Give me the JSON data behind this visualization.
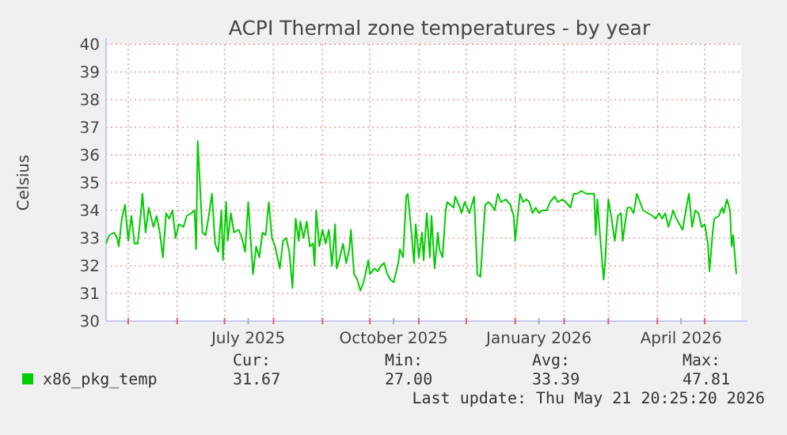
{
  "chart_data": {
    "type": "line",
    "title": "ACPI Thermal zone temperatures - by year",
    "ylabel": "Celsius",
    "xlim": [
      "2025-04-17",
      "2026-05-24"
    ],
    "xticks": [
      {
        "value": "2025-05-01",
        "label": null
      },
      {
        "value": "2025-06-01",
        "label": null
      },
      {
        "value": "2025-07-01",
        "label": null
      },
      {
        "value": "2025-07-16",
        "label": "July 2025"
      },
      {
        "value": "2025-08-01",
        "label": null
      },
      {
        "value": "2025-09-01",
        "label": null
      },
      {
        "value": "2025-10-01",
        "label": null
      },
      {
        "value": "2025-10-16",
        "label": "October 2025"
      },
      {
        "value": "2025-11-01",
        "label": null
      },
      {
        "value": "2025-12-01",
        "label": null
      },
      {
        "value": "2026-01-01",
        "label": null
      },
      {
        "value": "2026-01-16",
        "label": "January 2026"
      },
      {
        "value": "2026-02-01",
        "label": null
      },
      {
        "value": "2026-03-01",
        "label": null
      },
      {
        "value": "2026-04-01",
        "label": null
      },
      {
        "value": "2026-04-16",
        "label": "April 2026"
      },
      {
        "value": "2026-05-01",
        "label": null
      }
    ],
    "ylim": [
      30,
      40
    ],
    "yticks": [
      30,
      31,
      32,
      33,
      34,
      35,
      36,
      37,
      38,
      39,
      40
    ],
    "grid": true,
    "legend": "bottom left",
    "annotations": [
      "Cur:",
      "Min:",
      "Avg:",
      "Max:",
      "31.67",
      "27.00",
      "33.39",
      "47.81",
      "Last update: Thu May 21 20:25:20 2026"
    ],
    "x": [
      "2025-04-17",
      "2025-04-19",
      "2025-04-22",
      "2025-04-24",
      "2025-04-25",
      "2025-04-27",
      "2025-04-29",
      "2025-05-01",
      "2025-05-03",
      "2025-05-05",
      "2025-05-07",
      "2025-05-09",
      "2025-05-10",
      "2025-05-12",
      "2025-05-14",
      "2025-05-17",
      "2025-05-19",
      "2025-05-21",
      "2025-05-23",
      "2025-05-25",
      "2025-05-27",
      "2025-05-29",
      "2025-05-31",
      "2025-06-02",
      "2025-06-05",
      "2025-06-07",
      "2025-06-10",
      "2025-06-12",
      "2025-06-13",
      "2025-06-14",
      "2025-06-17",
      "2025-06-19",
      "2025-06-21",
      "2025-06-23",
      "2025-06-25",
      "2025-06-27",
      "2025-06-29",
      "2025-06-30",
      "2025-07-02",
      "2025-07-03",
      "2025-07-05",
      "2025-07-07",
      "2025-07-10",
      "2025-07-12",
      "2025-07-14",
      "2025-07-16",
      "2025-07-19",
      "2025-07-21",
      "2025-07-23",
      "2025-07-25",
      "2025-07-27",
      "2025-07-29",
      "2025-07-31",
      "2025-08-02",
      "2025-08-05",
      "2025-08-07",
      "2025-08-09",
      "2025-08-11",
      "2025-08-13",
      "2025-08-15",
      "2025-08-17",
      "2025-08-18",
      "2025-08-20",
      "2025-08-22",
      "2025-08-24",
      "2025-08-26",
      "2025-08-27",
      "2025-08-28",
      "2025-08-30",
      "2025-09-01",
      "2025-09-03",
      "2025-09-05",
      "2025-09-07",
      "2025-09-09",
      "2025-09-10",
      "2025-09-12",
      "2025-09-14",
      "2025-09-16",
      "2025-09-18",
      "2025-09-19",
      "2025-09-21",
      "2025-09-23",
      "2025-09-25",
      "2025-09-27",
      "2025-09-30",
      "2025-10-01",
      "2025-10-04",
      "2025-10-06",
      "2025-10-08",
      "2025-10-10",
      "2025-10-12",
      "2025-10-14",
      "2025-10-16",
      "2025-10-19",
      "2025-10-20",
      "2025-10-22",
      "2025-10-24",
      "2025-10-25",
      "2025-10-27",
      "2025-10-29",
      "2025-10-30",
      "2025-11-01",
      "2025-11-03",
      "2025-11-04",
      "2025-11-06",
      "2025-11-08",
      "2025-11-09",
      "2025-11-11",
      "2025-11-13",
      "2025-11-14",
      "2025-11-16",
      "2025-11-18",
      "2025-11-19",
      "2025-11-23",
      "2025-11-24",
      "2025-11-27",
      "2025-11-28",
      "2025-11-30",
      "2025-12-03",
      "2025-12-04",
      "2025-12-06",
      "2025-12-08",
      "2025-12-10",
      "2025-12-13",
      "2025-12-15",
      "2025-12-17",
      "2025-12-19",
      "2025-12-21",
      "2025-12-23",
      "2025-12-26",
      "2025-12-29",
      "2025-12-31",
      "2026-01-01",
      "2026-01-04",
      "2026-01-06",
      "2026-01-08",
      "2026-01-10",
      "2026-01-12",
      "2026-01-14",
      "2026-01-16",
      "2026-01-18",
      "2026-01-21",
      "2026-01-23",
      "2026-01-26",
      "2026-01-28",
      "2026-01-31",
      "2026-02-02",
      "2026-02-05",
      "2026-02-07",
      "2026-02-09",
      "2026-02-12",
      "2026-02-15",
      "2026-02-17",
      "2026-02-20",
      "2026-02-21",
      "2026-02-22",
      "2026-02-24",
      "2026-02-26",
      "2026-02-27",
      "2026-03-01",
      "2026-03-03",
      "2026-03-05",
      "2026-03-07",
      "2026-03-09",
      "2026-03-10",
      "2026-03-13",
      "2026-03-15",
      "2026-03-17",
      "2026-03-19",
      "2026-03-21",
      "2026-03-23",
      "2026-03-26",
      "2026-03-29",
      "2026-03-31",
      "2026-04-02",
      "2026-04-04",
      "2026-04-06",
      "2026-04-08",
      "2026-04-11",
      "2026-04-13",
      "2026-04-15",
      "2026-04-17",
      "2026-04-19",
      "2026-04-21",
      "2026-04-23",
      "2026-04-25",
      "2026-04-27",
      "2026-04-29",
      "2026-05-01",
      "2026-05-03",
      "2026-05-04",
      "2026-05-06",
      "2026-05-07",
      "2026-05-10",
      "2026-05-12",
      "2026-05-13",
      "2026-05-15",
      "2026-05-17",
      "2026-05-18",
      "2026-05-19",
      "2026-05-21"
    ],
    "series": [
      {
        "name": "x86_pkg_temp",
        "color": "#00cc00",
        "values": [
          32.8,
          33.1,
          33.2,
          33.0,
          32.7,
          33.7,
          34.2,
          32.9,
          33.8,
          32.8,
          32.8,
          33.9,
          34.6,
          33.2,
          34.1,
          33.4,
          33.8,
          33.2,
          32.3,
          33.9,
          33.7,
          34.0,
          33.0,
          33.5,
          33.4,
          33.8,
          33.9,
          34.0,
          32.6,
          36.5,
          33.2,
          33.1,
          33.8,
          34.6,
          32.8,
          32.5,
          34.0,
          32.2,
          34.3,
          32.9,
          33.9,
          33.2,
          33.3,
          33.0,
          32.5,
          34.3,
          31.7,
          32.7,
          32.3,
          33.2,
          33.1,
          34.3,
          33.0,
          32.7,
          31.9,
          32.9,
          33.0,
          32.5,
          31.2,
          33.7,
          32.9,
          33.6,
          33.0,
          33.6,
          32.7,
          32.8,
          32.0,
          34.0,
          32.7,
          33.3,
          32.8,
          33.3,
          32.0,
          33.5,
          31.9,
          32.3,
          32.8,
          32.1,
          32.6,
          33.3,
          31.7,
          31.5,
          31.1,
          31.4,
          32.2,
          31.7,
          31.9,
          31.8,
          32.0,
          32.1,
          31.7,
          31.5,
          31.4,
          32.1,
          32.6,
          32.3,
          34.5,
          34.6,
          33.4,
          32.1,
          33.5,
          32.3,
          33.2,
          32.2,
          33.9,
          32.3,
          33.8,
          31.9,
          33.2,
          32.6,
          32.3,
          34.0,
          34.3,
          34.1,
          34.5,
          34.1,
          33.9,
          34.3,
          33.9,
          34.1,
          34.5,
          31.7,
          31.6,
          34.2,
          34.3,
          34.2,
          34.0,
          34.6,
          34.3,
          34.4,
          34.2,
          33.8,
          32.9,
          34.6,
          34.3,
          34.4,
          34.3,
          33.9,
          34.1,
          33.9,
          34.0,
          34.0,
          34.3,
          34.5,
          34.3,
          34.4,
          34.3,
          34.1,
          34.6,
          34.6,
          34.7,
          34.6,
          34.6,
          34.6,
          33.1,
          34.4,
          32.9,
          31.5,
          32.2,
          34.4,
          33.7,
          32.9,
          33.8,
          33.9,
          32.9,
          34.1,
          34.1,
          33.9,
          34.6,
          34.3,
          34.0,
          33.9,
          33.8,
          33.7,
          33.9,
          33.7,
          33.9,
          33.4,
          34.0,
          33.7,
          33.5,
          33.3,
          34.0,
          34.6,
          33.4,
          34.0,
          33.9,
          33.4,
          33.5,
          32.8,
          31.8,
          33.2,
          33.7,
          33.8,
          34.1,
          33.9,
          34.4,
          34.0,
          32.7,
          33.1,
          31.7
        ]
      }
    ]
  }
}
